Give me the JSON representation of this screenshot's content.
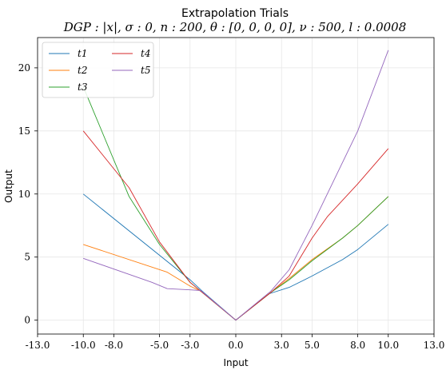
{
  "chart_data": {
    "type": "line",
    "title": "Extrapolation Trials",
    "subtitle": "DGP : |x|, σ : 0, n : 200, θ : [0, 0, 0, 0], ν : 500, l : 0.0008",
    "xlabel": "Input",
    "ylabel": "Output",
    "xlim": [
      -13,
      13
    ],
    "ylim": [
      -1.1,
      22.4
    ],
    "x_ticks": [
      -13,
      -10,
      -8,
      -5,
      -3,
      0,
      3,
      5,
      8,
      10,
      13
    ],
    "x_tick_labels": [
      "-13.0",
      "-10.0",
      "-8.0",
      "-5.0",
      "-3.0",
      "0.0",
      "3.0",
      "5.0",
      "8.0",
      "10.0",
      "13.0"
    ],
    "y_ticks": [
      0,
      5,
      10,
      15,
      20
    ],
    "y_tick_labels": [
      "0",
      "5",
      "10",
      "15",
      "20"
    ],
    "grid": true,
    "legend_position": "top-left",
    "series": [
      {
        "name": "t1",
        "color": "#1f77b4",
        "x": [
          -10,
          -3,
          -2.2,
          0,
          2.2,
          3.5,
          5,
          7,
          8,
          10
        ],
        "y": [
          10,
          3.2,
          2.3,
          0,
          2.1,
          2.6,
          3.5,
          4.8,
          5.6,
          7.6
        ]
      },
      {
        "name": "t2",
        "color": "#ff7f0e",
        "x": [
          -10,
          -4.5,
          -3,
          -2.3,
          0,
          2.3,
          3.5,
          5,
          7,
          8,
          10
        ],
        "y": [
          6.0,
          3.8,
          2.7,
          2.3,
          0,
          2.2,
          3.3,
          4.8,
          6.5,
          7.5,
          9.8
        ]
      },
      {
        "name": "t3",
        "color": "#2ca02c",
        "x": [
          -10,
          -7,
          -5,
          -3,
          -2.3,
          0,
          2.3,
          3.5,
          5,
          7,
          8,
          10
        ],
        "y": [
          18.5,
          9.8,
          6.0,
          3.0,
          2.3,
          0,
          2.2,
          3.2,
          4.7,
          6.5,
          7.5,
          9.8
        ]
      },
      {
        "name": "t4",
        "color": "#d62728",
        "x": [
          -10,
          -7,
          -5,
          -3,
          -2.3,
          0,
          2.3,
          3.5,
          5,
          6,
          8,
          10
        ],
        "y": [
          15,
          10.5,
          6.2,
          3.0,
          2.3,
          0,
          2.2,
          3.5,
          6.5,
          8.2,
          10.8,
          13.6
        ]
      },
      {
        "name": "t5",
        "color": "#9467bd",
        "x": [
          -10,
          -5.5,
          -4.5,
          -3,
          -2.3,
          0,
          2.3,
          3.5,
          5,
          8,
          10
        ],
        "y": [
          4.9,
          3.0,
          2.5,
          2.4,
          2.35,
          0,
          2.3,
          4.0,
          7.5,
          15.0,
          21.4
        ]
      }
    ]
  }
}
